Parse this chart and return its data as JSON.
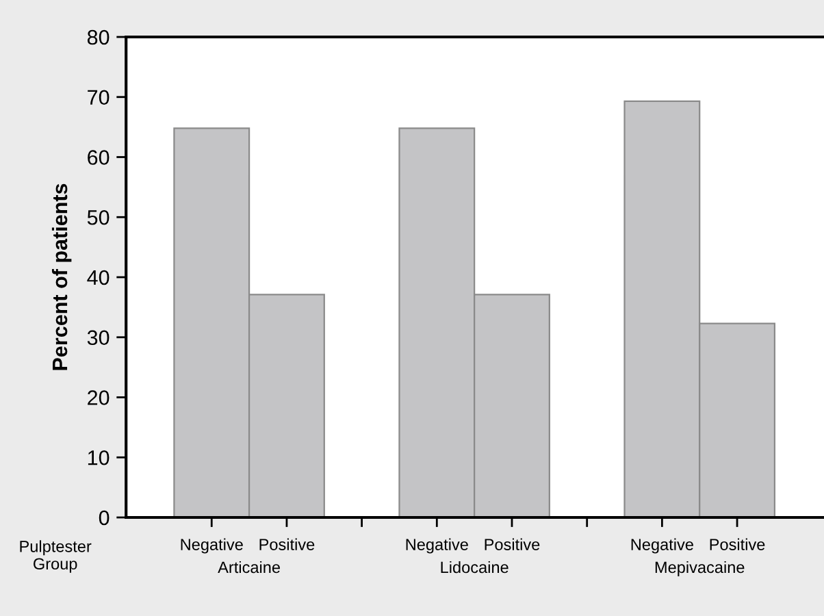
{
  "chart_data": {
    "type": "bar",
    "ylabel": "Percent of patients",
    "categories": [
      "Negative",
      "Positive",
      null,
      "Negative",
      "Positive",
      null,
      "Negative",
      "Positive"
    ],
    "values": [
      64.8,
      37.1,
      null,
      64.8,
      37.1,
      null,
      69.3,
      32.3
    ],
    "color": "#c4c4c6",
    "ylim": [
      0,
      80
    ],
    "yticks": [
      0,
      10,
      20,
      30,
      40,
      50,
      60,
      70,
      80
    ],
    "grid": false,
    "legend": false,
    "annotations": [
      "Pulptester\nGroup",
      "Articaine",
      "Lidocaine",
      "Mepivacaine"
    ]
  }
}
